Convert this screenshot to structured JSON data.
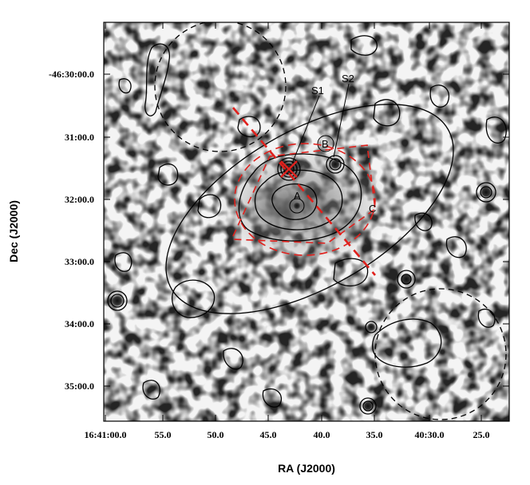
{
  "axes": {
    "xlabel": "RA (J2000)",
    "ylabel": "Dec (J2000)",
    "x_ticks": [
      "16:41:00.0",
      "55.0",
      "50.0",
      "45.0",
      "40.0",
      "35.0",
      "40:30.0",
      "25.0"
    ],
    "y_ticks": [
      "-46:30:00.0",
      "31:00.0",
      "32:00.0",
      "33:00.0",
      "34:00.0",
      "35:00.0"
    ]
  },
  "labels": {
    "s1": "S1",
    "s2": "S2",
    "a": "A",
    "b": "B",
    "c": "C"
  },
  "colors": {
    "contour": "#000000",
    "region_red": "#e0201c",
    "background_noise": "#b0b0b0"
  }
}
